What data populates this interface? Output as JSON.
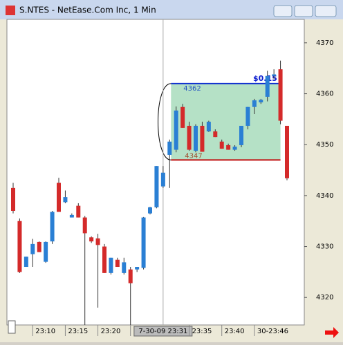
{
  "chart_data": {
    "type": "candlestick",
    "title": "S.NTES - NetEase.Com Inc, 1 Min",
    "categories": [
      null,
      null,
      null,
      "23:10",
      null,
      null,
      null,
      null,
      "23:15",
      null,
      null,
      null,
      null,
      "23:20",
      null,
      null,
      null,
      null,
      "23:25",
      null,
      null,
      null,
      null,
      "7-30-09 23:31",
      null,
      null,
      null,
      "23:35",
      null,
      null,
      null,
      null,
      "23:40",
      null,
      null,
      null,
      null,
      "30-23:46",
      null,
      null,
      null,
      null,
      null
    ],
    "open": [
      4341.5,
      4335,
      4326,
      4328.5,
      4330.9,
      4327,
      4331,
      4342.5,
      4338.7,
      4335.7,
      4338,
      4335.7,
      4331.8,
      4331.6,
      4330,
      4324.8,
      4327.4,
      4324.8,
      4325.5,
      4325.5,
      4325.8,
      4336.5,
      4337.7,
      4341.8,
      4348,
      4349,
      4357.4,
      4353.7,
      4348.8,
      4353.7,
      4352.6,
      4352.6,
      4350.6,
      4349.9,
      4349,
      4349.9,
      4353.7,
      4357.4,
      4358.3,
      4359.4,
      4363.5,
      4364.8,
      4353.7
    ],
    "high": [
      4342.5,
      4335.5,
      4328,
      4331.5,
      4331,
      4331,
      4337,
      4343.5,
      4341,
      4336.5,
      4338.5,
      4336,
      4332,
      4332.5,
      4330.5,
      4327.8,
      4327.8,
      4327.8,
      4326,
      4326,
      4335.8,
      4337.8,
      4345.8,
      4345.8,
      4351,
      4357.5,
      4358,
      4354.5,
      4354,
      4354.5,
      4354.7,
      4353,
      4351,
      4350.2,
      4349.9,
      4353.7,
      4357.4,
      4359,
      4359,
      4364.5,
      4364.8,
      4366.5,
      4353.7
    ],
    "low": [
      4336.5,
      4324.8,
      4326,
      4326,
      4328.9,
      4326.8,
      4330.5,
      4336.8,
      4338.5,
      4335.7,
      4335.7,
      4314.6,
      4330.7,
      4318,
      4324.8,
      4324.5,
      4326,
      4324.5,
      4314.6,
      4325,
      4325.5,
      4336.3,
      4337.5,
      4341.5,
      4341.5,
      4348.5,
      4353.3,
      4348.8,
      4348.5,
      4348.6,
      4352.5,
      4351.5,
      4349.2,
      4349,
      4348.8,
      4349.5,
      4353,
      4356,
      4358,
      4358.5,
      4362.8,
      4354,
      4343
    ],
    "close": [
      4337,
      4325,
      4328,
      4330.5,
      4328.9,
      4330.9,
      4336.8,
      4336.8,
      4339.7,
      4336.2,
      4335.7,
      4332.6,
      4331,
      4330.3,
      4324.8,
      4327.8,
      4326,
      4326.9,
      4322.8,
      4326,
      4335.7,
      4337.7,
      4345.8,
      4344.5,
      4350.6,
      4356.7,
      4353.3,
      4349,
      4353.7,
      4348.6,
      4354.5,
      4351.5,
      4349.2,
      4349,
      4349.6,
      4353.7,
      4357.4,
      4358.7,
      4358.8,
      4363.5,
      4363.8,
      4354.7,
      4343.4
    ],
    "up_color": "#2a7fd4",
    "down_color": "#d42a2a",
    "ylim": [
      4314.6,
      4374.6
    ],
    "yticks": [
      4320,
      4330,
      4340,
      4350,
      4360,
      4370
    ],
    "measure": {
      "top": 4362,
      "bottom": 4347,
      "top_label": "4362",
      "bottom_label": "4347",
      "change": "$0.15"
    }
  }
}
